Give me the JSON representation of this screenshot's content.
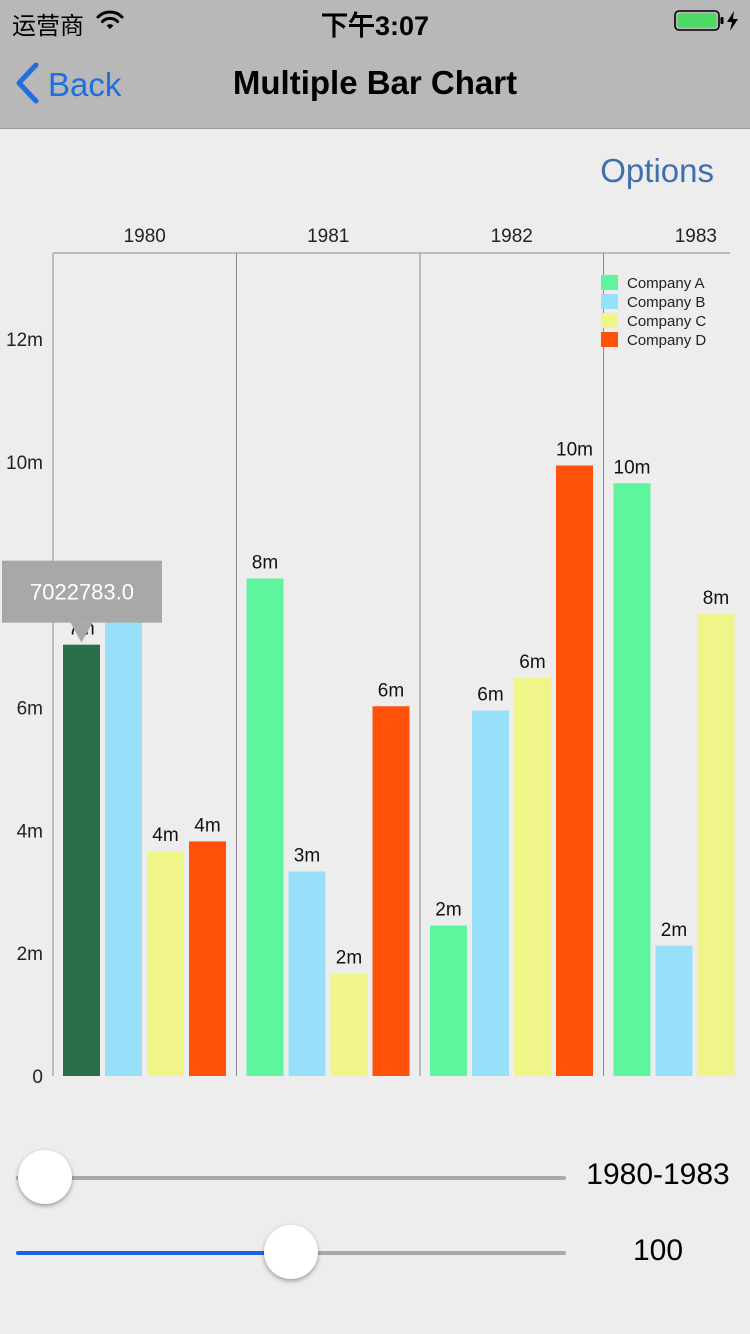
{
  "status_bar": {
    "carrier": "运营商",
    "time": "下午3:07"
  },
  "nav": {
    "back_label": "Back",
    "title": "Multiple Bar Chart"
  },
  "options_label": "Options",
  "chart_data": {
    "type": "bar",
    "orientation": "vertical",
    "categories": [
      "1980",
      "1981",
      "1982",
      "1983"
    ],
    "series": [
      {
        "name": "Company A",
        "color": "#5ef59e",
        "values": [
          7022783.0,
          8100000,
          2450000,
          9650000
        ]
      },
      {
        "name": "Company B",
        "color": "#98dff9",
        "values": [
          7500000,
          3330000,
          5950000,
          2120000
        ]
      },
      {
        "name": "Company C",
        "color": "#f0f58a",
        "values": [
          3660000,
          1670000,
          6480000,
          7520000
        ]
      },
      {
        "name": "Company D",
        "color": "#ff5208",
        "values": [
          3820000,
          6020000,
          9940000,
          null
        ]
      }
    ],
    "value_labels": [
      [
        "7m",
        "8m",
        "4m",
        "4m"
      ],
      [
        "8m",
        "3m",
        "2m",
        "6m"
      ],
      [
        "2m",
        "6m",
        "6m",
        "10m"
      ],
      [
        "10m",
        "2m",
        "8m",
        ""
      ]
    ],
    "y_ticks": [
      "0",
      "2m",
      "4m",
      "6m",
      "8m",
      "10m",
      "12m"
    ],
    "ylim": [
      0,
      13400000
    ],
    "x_axis_position": "top",
    "legend_position": "top-right",
    "selected": {
      "category_index": 0,
      "series_index": 0,
      "color": "#2a6e4b",
      "tooltip": "7022783.0"
    }
  },
  "sliders": {
    "x_range": {
      "value_label": "1980-1983",
      "fraction": 0.0
    },
    "y_range": {
      "value_label": "100",
      "fraction": 0.5
    }
  }
}
